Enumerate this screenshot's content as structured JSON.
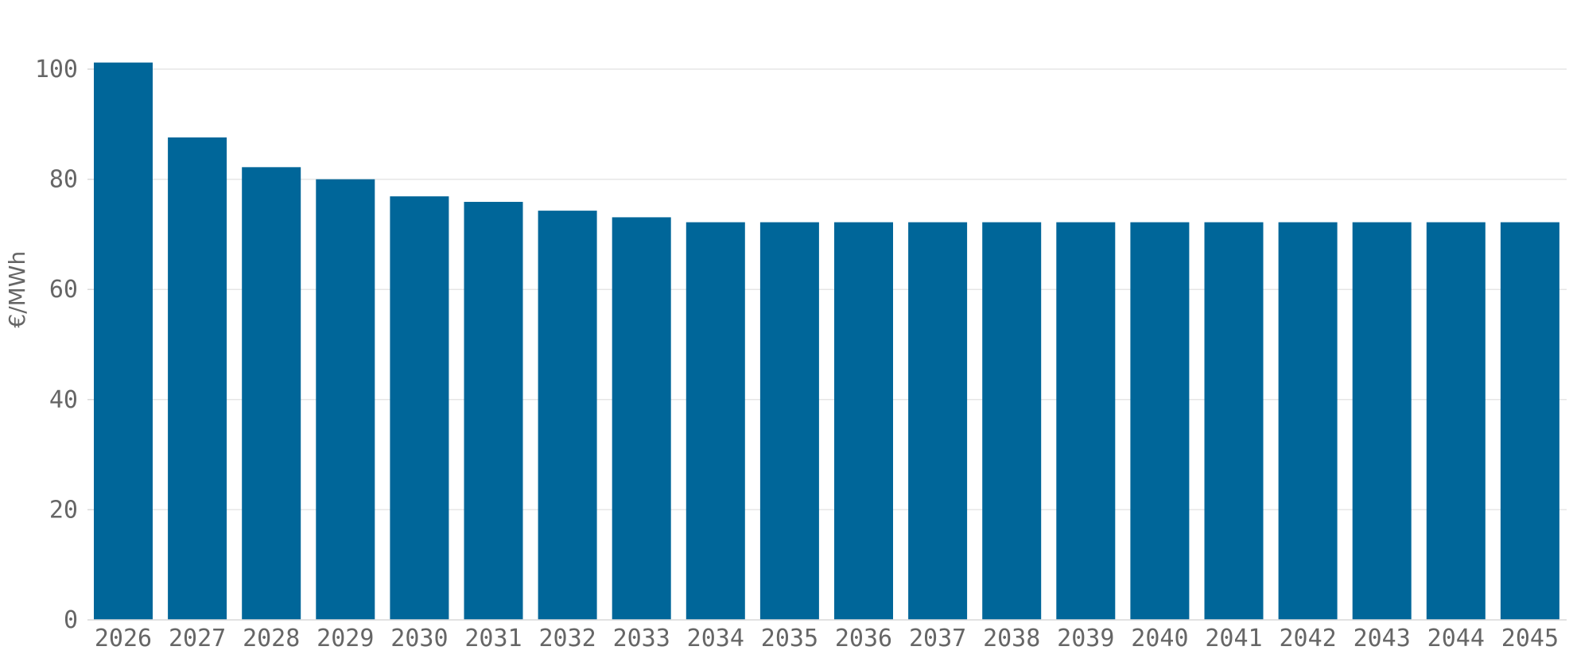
{
  "chart_data": {
    "type": "bar",
    "categories": [
      "2026",
      "2027",
      "2028",
      "2029",
      "2030",
      "2031",
      "2032",
      "2033",
      "2034",
      "2035",
      "2036",
      "2037",
      "2038",
      "2039",
      "2040",
      "2041",
      "2042",
      "2043",
      "2044",
      "2045"
    ],
    "values": [
      101.2,
      87.6,
      82.2,
      80.0,
      76.9,
      75.9,
      74.3,
      73.1,
      72.2,
      72.2,
      72.2,
      72.2,
      72.2,
      72.2,
      72.2,
      72.2,
      72.2,
      72.2,
      72.2,
      72.2
    ],
    "title": "",
    "xlabel": "",
    "ylabel": "€/MWh",
    "ylim": [
      0,
      105
    ],
    "yticks": [
      0,
      20,
      40,
      60,
      80,
      100
    ],
    "grid": true,
    "colors": {
      "bar": "#006699",
      "text": "#666666",
      "grid": "#e6e6e6"
    }
  }
}
